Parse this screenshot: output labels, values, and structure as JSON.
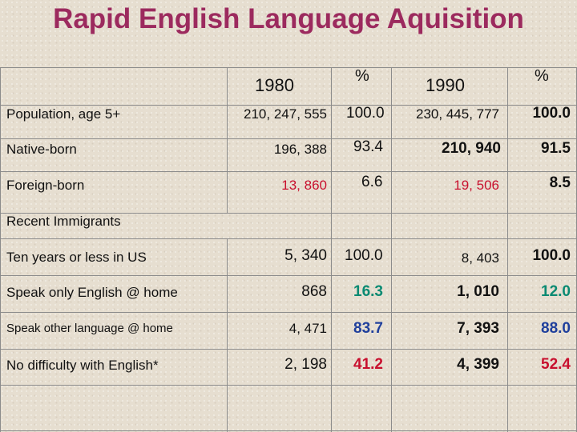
{
  "title": "Rapid English Language Aquisition",
  "header": {
    "col_1980": "1980",
    "pct_1980": "%",
    "col_1990": "1990",
    "pct_1990": "%"
  },
  "rows": [
    {
      "label": "Population, age 5+",
      "v1980": "210, 247, 555",
      "p1980": "100.0",
      "v1990": "230, 445, 777",
      "p1990": "100.0"
    },
    {
      "label": "Native-born",
      "v1980": "196, 388",
      "p1980": "93.4",
      "v1990": "210, 940",
      "p1990": "91.5"
    },
    {
      "label": "Foreign-born",
      "v1980": "13, 860",
      "p1980": "6.6",
      "v1990": "19, 506",
      "p1990": "8.5"
    },
    {
      "label": "Recent Immigrants"
    },
    {
      "label": "Ten years or less in US",
      "v1980": "5, 340",
      "p1980": "100.0",
      "v1990": "8, 403",
      "p1990": "100.0"
    },
    {
      "label": "Speak only English @ home",
      "v1980": "868",
      "p1980": "16.3",
      "v1990": "1, 010",
      "p1990": "12.0"
    },
    {
      "label": "Speak other language @ home",
      "v1980": "4, 471",
      "p1980": "83.7",
      "v1990": "7, 393",
      "p1990": "88.0"
    },
    {
      "label": "No difficulty with English*",
      "v1980": "2, 198",
      "p1980": "41.2",
      "v1990": "4, 399",
      "p1990": "52.4"
    }
  ],
  "colors": {
    "title": "#9c2a5e",
    "red_values": "#c8102e",
    "green_values": "#0a8a72",
    "blue_values": "#1f3f9c"
  }
}
